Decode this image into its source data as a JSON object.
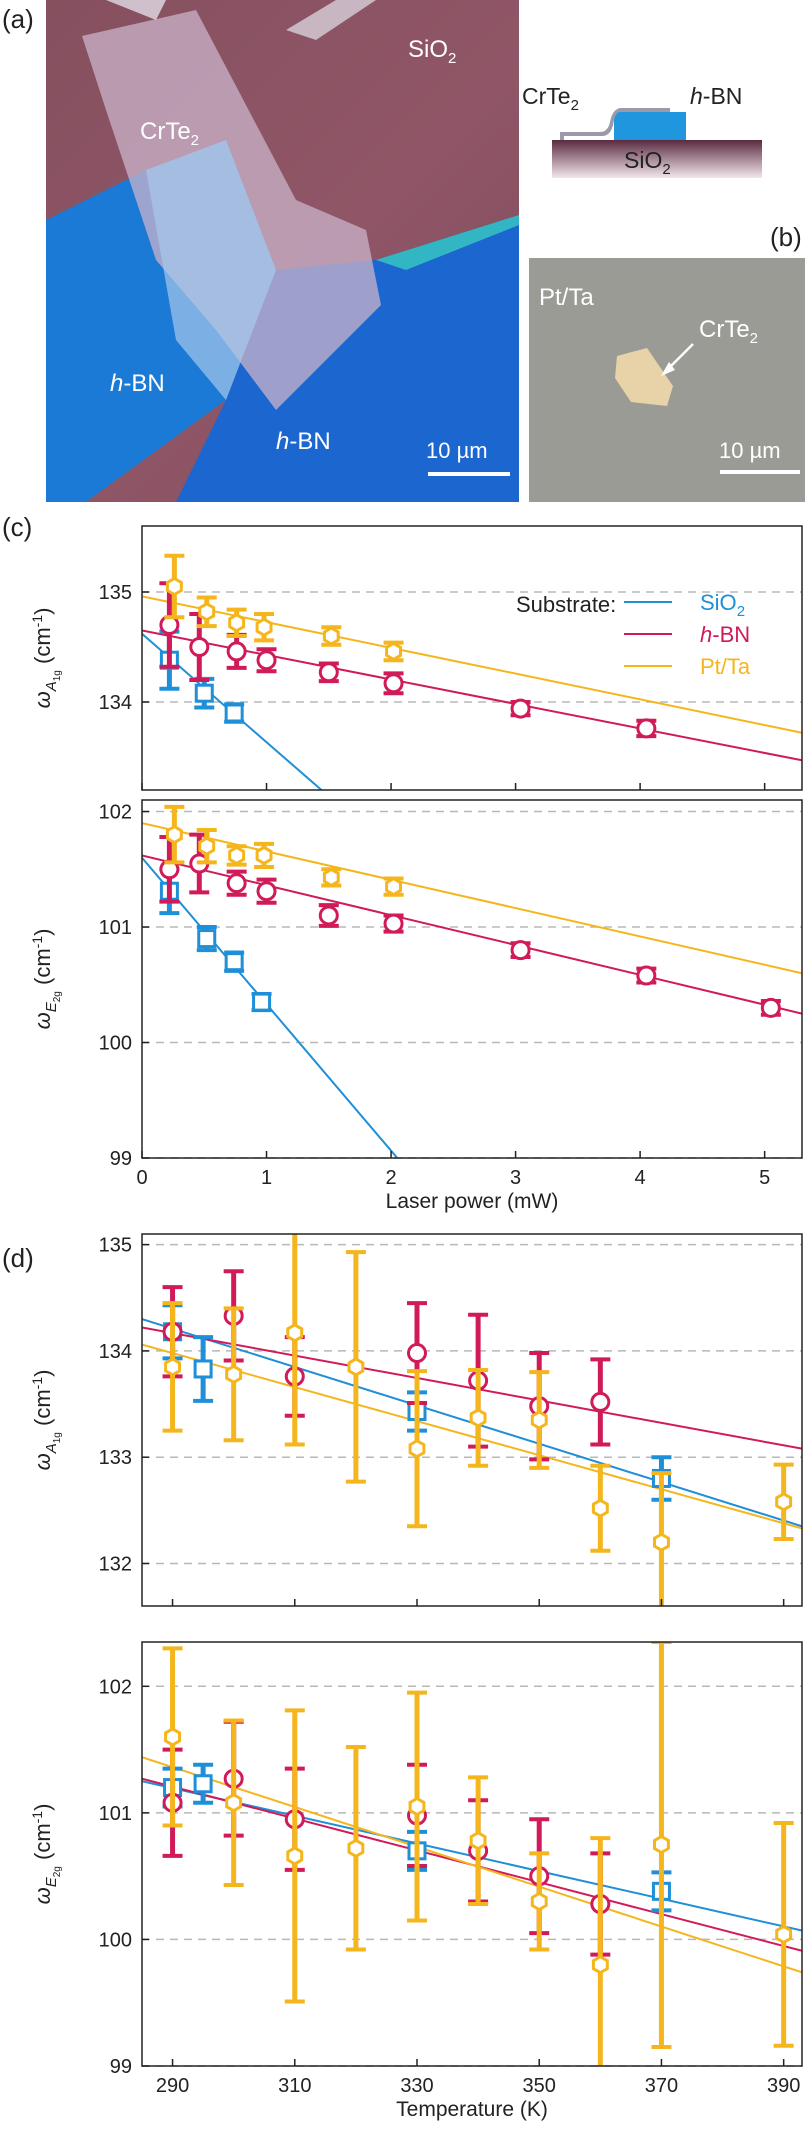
{
  "colors": {
    "sio2": "#1f8fd8",
    "hbn": "#d01a5a",
    "ptta": "#f5b51c",
    "axis": "#222222",
    "grid": "#b8b8b8"
  },
  "panel_labels": {
    "a": "(a)",
    "b": "(b)",
    "c": "(c)",
    "d": "(d)"
  },
  "photo_a": {
    "label_sio2": "SiO",
    "label_sio2_sub": "2",
    "label_crte2": "CrTe",
    "label_crte2_sub": "2",
    "label_hbn1_italic": "h",
    "label_hbn1_rest": "-BN",
    "label_hbn2_italic": "h",
    "label_hbn2_rest": "-BN",
    "scalebar": "10 µm"
  },
  "schematic": {
    "crte2": "CrTe",
    "crte2_sub": "2",
    "hbn_italic": "h",
    "hbn_rest": "-BN",
    "sio2": "SiO",
    "sio2_sub": "2"
  },
  "photo_b": {
    "label_ptta": "Pt/Ta",
    "label_crte2": "CrTe",
    "label_crte2_sub": "2",
    "scalebar": "10 µm"
  },
  "chart_data": [
    {
      "type": "scatter",
      "panel": "c-top",
      "ylabel": "ω_A1g (cm-1)",
      "ylim": [
        133.2,
        135.6
      ],
      "xlim": [
        0,
        5.3
      ],
      "yticks": [
        134,
        135
      ],
      "legend_title": "Substrate:",
      "legend": [
        "SiO2",
        "h-BN",
        "Pt/Ta"
      ],
      "series": [
        {
          "name": "SiO2",
          "marker": "square",
          "points": [
            [
              0.22,
              134.38,
              0.26
            ],
            [
              0.5,
              134.08,
              0.13
            ],
            [
              0.74,
              133.9,
              0.08
            ]
          ],
          "fit": [
            [
              0,
              134.62
            ],
            [
              2.05,
              132.6
            ]
          ]
        },
        {
          "name": "h-BN",
          "marker": "circle",
          "points": [
            [
              0.22,
              134.7,
              0.38
            ],
            [
              0.46,
              134.5,
              0.3
            ],
            [
              0.76,
              134.46,
              0.15
            ],
            [
              1.0,
              134.38,
              0.1
            ],
            [
              1.5,
              134.27,
              0.08
            ],
            [
              2.02,
              134.17,
              0.09
            ],
            [
              3.04,
              133.94,
              0.06
            ],
            [
              4.05,
              133.76,
              0.07
            ]
          ],
          "fit": [
            [
              0,
              134.65
            ],
            [
              5.3,
              133.47
            ]
          ]
        },
        {
          "name": "Pt/Ta",
          "marker": "hexagon",
          "points": [
            [
              0.26,
              135.05,
              0.28
            ],
            [
              0.52,
              134.82,
              0.13
            ],
            [
              0.76,
              134.72,
              0.12
            ],
            [
              0.98,
              134.68,
              0.12
            ],
            [
              1.52,
              134.6,
              0.08
            ],
            [
              2.02,
              134.46,
              0.08
            ]
          ],
          "fit": [
            [
              0,
              134.96
            ],
            [
              5.3,
              133.72
            ]
          ]
        }
      ]
    },
    {
      "type": "scatter",
      "panel": "c-bottom",
      "xlabel": "Laser power (mW)",
      "ylabel": "ω_E2g (cm-1)",
      "ylim": [
        99,
        102.1
      ],
      "xlim": [
        0,
        5.3
      ],
      "xticks": [
        0,
        1,
        2,
        3,
        4,
        5
      ],
      "yticks": [
        99,
        100,
        101,
        102
      ],
      "series": [
        {
          "name": "SiO2",
          "marker": "square",
          "points": [
            [
              0.22,
              101.31,
              0.19
            ],
            [
              0.52,
              100.9,
              0.1
            ],
            [
              0.74,
              100.7,
              0.08
            ],
            [
              0.96,
              100.35,
              0.07
            ]
          ],
          "fit": [
            [
              0,
              101.6
            ],
            [
              2.05,
              99.0
            ]
          ]
        },
        {
          "name": "h-BN",
          "marker": "circle",
          "points": [
            [
              0.22,
              101.5,
              0.28
            ],
            [
              0.46,
              101.55,
              0.25
            ],
            [
              0.76,
              101.38,
              0.1
            ],
            [
              1.0,
              101.31,
              0.1
            ],
            [
              1.5,
              101.1,
              0.09
            ],
            [
              2.02,
              101.03,
              0.07
            ],
            [
              3.04,
              100.8,
              0.06
            ],
            [
              4.05,
              100.58,
              0.06
            ],
            [
              5.05,
              100.3,
              0.06
            ]
          ],
          "fit": [
            [
              0,
              101.62
            ],
            [
              5.3,
              100.25
            ]
          ]
        },
        {
          "name": "Pt/Ta",
          "marker": "hexagon",
          "points": [
            [
              0.26,
              101.8,
              0.24
            ],
            [
              0.52,
              101.7,
              0.14
            ],
            [
              0.76,
              101.62,
              0.08
            ],
            [
              0.98,
              101.62,
              0.1
            ],
            [
              1.52,
              101.43,
              0.07
            ],
            [
              2.02,
              101.35,
              0.07
            ]
          ],
          "fit": [
            [
              0,
              101.9
            ],
            [
              5.3,
              100.6
            ]
          ]
        }
      ]
    },
    {
      "type": "scatter",
      "panel": "d-top",
      "ylabel": "ω_A1g (cm-1)",
      "ylim": [
        131.6,
        135.1
      ],
      "xlim": [
        285,
        393
      ],
      "yticks": [
        132,
        133,
        134,
        135
      ],
      "series": [
        {
          "name": "SiO2",
          "marker": "square",
          "points": [
            [
              290,
              134.18,
              0.25
            ],
            [
              295,
              133.83,
              0.3
            ],
            [
              330,
              133.43,
              0.18
            ],
            [
              370,
              132.8,
              0.2
            ]
          ],
          "fit": [
            [
              285,
              134.3
            ],
            [
              393,
              132.35
            ]
          ]
        },
        {
          "name": "h-BN",
          "marker": "circle",
          "points": [
            [
              290,
              134.18,
              0.42
            ],
            [
              300,
              134.33,
              0.42
            ],
            [
              310,
              133.76,
              0.37
            ],
            [
              330,
              133.98,
              0.47
            ],
            [
              340,
              133.72,
              0.62
            ],
            [
              350,
              133.48,
              0.5
            ],
            [
              360,
              133.52,
              0.4
            ]
          ],
          "fit": [
            [
              285,
              134.22
            ],
            [
              393,
              133.08
            ]
          ]
        },
        {
          "name": "Pt/Ta",
          "marker": "hexagon",
          "points": [
            [
              290,
              133.85,
              0.6
            ],
            [
              300,
              133.78,
              0.62
            ],
            [
              310,
              134.17,
              1.05
            ],
            [
              320,
              133.85,
              1.08
            ],
            [
              330,
              133.08,
              0.73
            ],
            [
              340,
              133.37,
              0.45
            ],
            [
              350,
              133.35,
              0.45
            ],
            [
              360,
              132.52,
              0.4
            ],
            [
              370,
              132.2,
              0.65
            ],
            [
              390,
              132.58,
              0.35
            ]
          ],
          "fit": [
            [
              285,
              134.06
            ],
            [
              393,
              132.33
            ]
          ]
        }
      ]
    },
    {
      "type": "scatter",
      "panel": "d-bottom",
      "xlabel": "Temperature (K)",
      "ylabel": "ω_E2g (cm-1)",
      "ylim": [
        99,
        102.35
      ],
      "xlim": [
        285,
        393
      ],
      "xticks": [
        290,
        310,
        330,
        350,
        370,
        390
      ],
      "yticks": [
        99,
        100,
        101,
        102
      ],
      "series": [
        {
          "name": "SiO2",
          "marker": "square",
          "points": [
            [
              290,
              101.2,
              0.15
            ],
            [
              295,
              101.23,
              0.15
            ],
            [
              330,
              100.7,
              0.15
            ],
            [
              370,
              100.38,
              0.15
            ]
          ],
          "fit": [
            [
              285,
              101.25
            ],
            [
              393,
              100.07
            ]
          ]
        },
        {
          "name": "h-BN",
          "marker": "circle",
          "points": [
            [
              290,
              101.08,
              0.42
            ],
            [
              300,
              101.27,
              0.45
            ],
            [
              310,
              100.95,
              0.4
            ],
            [
              330,
              100.98,
              0.4
            ],
            [
              340,
              100.7,
              0.4
            ],
            [
              350,
              100.5,
              0.45
            ],
            [
              360,
              100.28,
              0.4
            ]
          ],
          "fit": [
            [
              285,
              101.27
            ],
            [
              393,
              99.91
            ]
          ]
        },
        {
          "name": "Pt/Ta",
          "marker": "hexagon",
          "points": [
            [
              290,
              101.6,
              0.7
            ],
            [
              300,
              101.08,
              0.65
            ],
            [
              310,
              100.66,
              1.15
            ],
            [
              320,
              100.72,
              0.8
            ],
            [
              330,
              101.05,
              0.9
            ],
            [
              340,
              100.78,
              0.5
            ],
            [
              350,
              100.3,
              0.38
            ],
            [
              360,
              99.8,
              1.0
            ],
            [
              370,
              100.75,
              1.6
            ],
            [
              390,
              100.04,
              0.88
            ]
          ],
          "fit": [
            [
              285,
              101.44
            ],
            [
              393,
              99.74
            ]
          ]
        }
      ]
    }
  ]
}
